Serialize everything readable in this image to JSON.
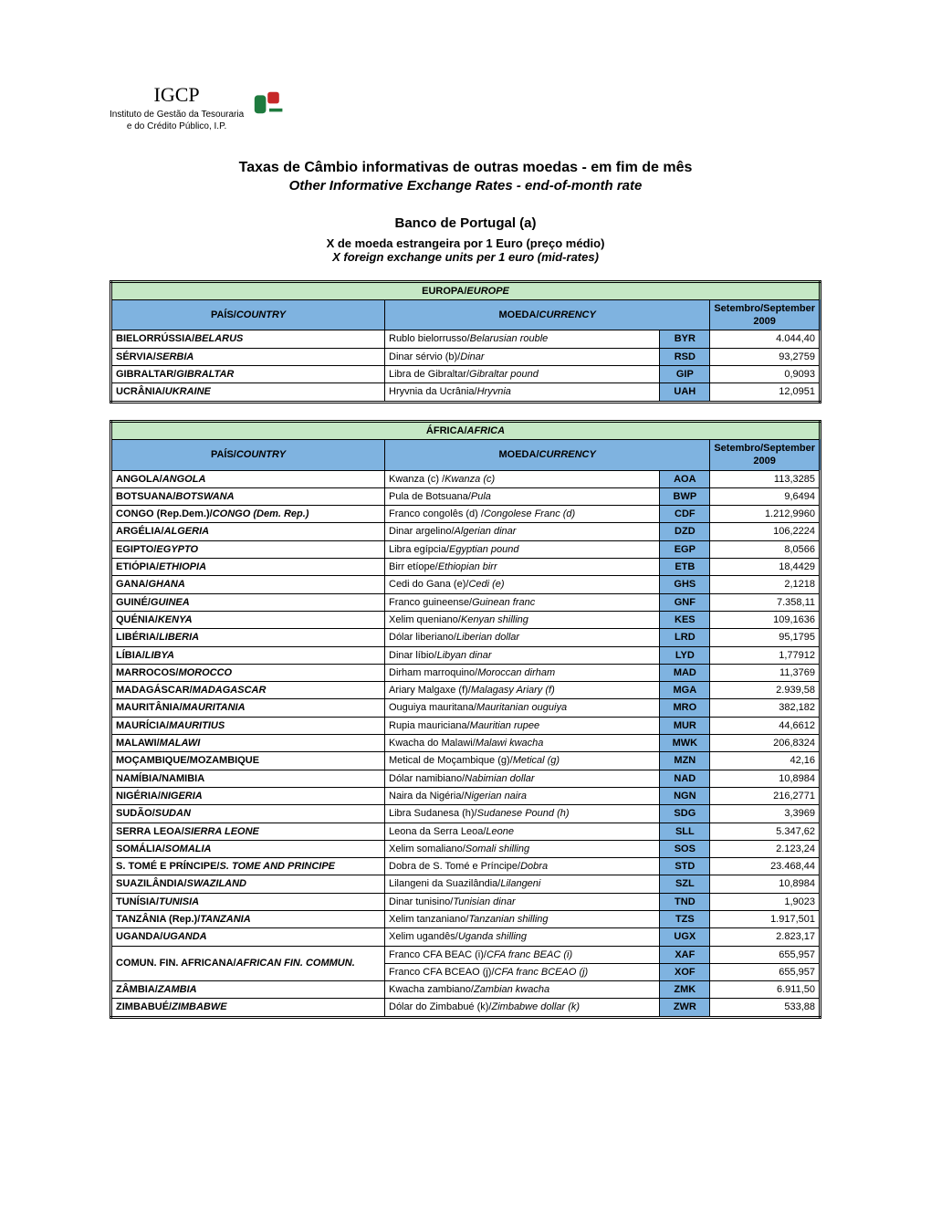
{
  "logo": {
    "short": "IGCP",
    "line1": "Instituto de Gestão da Tesouraria",
    "line2": "e do Crédito Público, I.P."
  },
  "titles": {
    "main_pt": "Taxas de Câmbio informativas de outras moedas - em fim de mês",
    "main_en": "Other Informative Exchange Rates - end-of-month rate",
    "source": "Banco de Portugal (a)",
    "unit_pt": "X de moeda estrangeira por 1 Euro (preço médio)",
    "unit_en": "X foreign exchange units per 1 euro (mid-rates)"
  },
  "headers": {
    "country_pt": "PAÍS/",
    "country_en": "COUNTRY",
    "currency_pt": "MOEDA/",
    "currency_en": "CURRENCY",
    "period": "Setembro/September 2009"
  },
  "colors": {
    "continent_bg": "#c5e8c5",
    "header_bg": "#7fb3e0",
    "code_bg": "#7fb3e0",
    "border": "#000000",
    "page_bg": "#ffffff"
  },
  "sections": [
    {
      "title_pt": "EUROPA/",
      "title_en": "EUROPE",
      "rows": [
        {
          "c_pt": "BIELORRÚSSIA/",
          "c_en": "BELARUS",
          "m_pt": "Rublo bielorrusso/",
          "m_en": "Belarusian rouble",
          "code": "BYR",
          "rate": "4.044,40"
        },
        {
          "c_pt": "SÉRVIA/",
          "c_en": "SERBIA",
          "m_pt": "Dinar sérvio (b)/",
          "m_en": "Dinar",
          "code": "RSD",
          "rate": "93,2759"
        },
        {
          "c_pt": "GIBRALTAR/",
          "c_en": "GIBRALTAR",
          "m_pt": "Libra de Gibraltar/",
          "m_en": "Gibraltar pound",
          "code": "GIP",
          "rate": "0,9093"
        },
        {
          "c_pt": "UCRÂNIA/",
          "c_en": "UKRAINE",
          "m_pt": "Hryvnia da Ucrânia/",
          "m_en": "Hryvnia",
          "code": "UAH",
          "rate": "12,0951"
        }
      ]
    },
    {
      "title_pt": "ÁFRICA/",
      "title_en": "AFRICA",
      "rows": [
        {
          "c_pt": "ANGOLA/",
          "c_en": "ANGOLA",
          "m_pt": "Kwanza (c) /",
          "m_en": "Kwanza (c)",
          "code": "AOA",
          "rate": "113,3285"
        },
        {
          "c_pt": "BOTSUANA/",
          "c_en": "BOTSWANA",
          "m_pt": "Pula de Botsuana/",
          "m_en": "Pula",
          "code": "BWP",
          "rate": "9,6494"
        },
        {
          "c_pt": "CONGO (Rep.Dem.)/",
          "c_en": "CONGO (Dem. Rep.)",
          "m_pt": "Franco congolês (d) /",
          "m_en": "Congolese Franc (d)",
          "code": "CDF",
          "rate": "1.212,9960"
        },
        {
          "c_pt": "ARGÉLIA/",
          "c_en": "ALGERIA",
          "m_pt": "Dinar argelino/",
          "m_en": "Algerian dinar",
          "code": "DZD",
          "rate": "106,2224"
        },
        {
          "c_pt": "EGIPTO/",
          "c_en": "EGYPTO",
          "m_pt": "Libra egípcia/",
          "m_en": "Egyptian pound",
          "code": "EGP",
          "rate": "8,0566"
        },
        {
          "c_pt": "ETIÓPIA/",
          "c_en": "ETHIOPIA",
          "m_pt": "Birr etíope/",
          "m_en": "Ethiopian birr",
          "code": "ETB",
          "rate": "18,4429"
        },
        {
          "c_pt": "GANA/",
          "c_en": "GHANA",
          "m_pt": "Cedi do Gana (e)/",
          "m_en": "Cedi (e)",
          "code": "GHS",
          "rate": "2,1218"
        },
        {
          "c_pt": "GUINÉ/",
          "c_en": "GUINEA",
          "m_pt": "Franco guineense/",
          "m_en": "Guinean franc",
          "code": "GNF",
          "rate": "7.358,11"
        },
        {
          "c_pt": "QUÉNIA/",
          "c_en": "KENYA",
          "m_pt": "Xelim queniano/",
          "m_en": "Kenyan shilling",
          "code": "KES",
          "rate": "109,1636"
        },
        {
          "c_pt": "LIBÉRIA/",
          "c_en": "LIBERIA",
          "m_pt": "Dólar liberiano/",
          "m_en": "Liberian dollar",
          "code": "LRD",
          "rate": "95,1795"
        },
        {
          "c_pt": "LÍBIA/",
          "c_en": "LIBYA",
          "m_pt": "Dinar líbio/",
          "m_en": "Libyan dinar",
          "code": "LYD",
          "rate": "1,77912"
        },
        {
          "c_pt": "MARROCOS/",
          "c_en": "MOROCCO",
          "m_pt": "Dirham marroquino/",
          "m_en": "Moroccan dirham",
          "code": "MAD",
          "rate": "11,3769"
        },
        {
          "c_pt": "MADAGÁSCAR/",
          "c_en": "MADAGASCAR",
          "m_pt": "Ariary Malgaxe (f)/",
          "m_en": "Malagasy Ariary (f)",
          "code": "MGA",
          "rate": "2.939,58"
        },
        {
          "c_pt": "MAURITÂNIA/",
          "c_en": "MAURITANIA",
          "m_pt": "Ouguiya mauritana/",
          "m_en": "Mauritanian ouguiya",
          "code": "MRO",
          "rate": "382,182"
        },
        {
          "c_pt": "MAURÍCIA/",
          "c_en": "MAURITIUS",
          "m_pt": "Rupia mauriciana/",
          "m_en": "Mauritian rupee",
          "code": "MUR",
          "rate": "44,6612"
        },
        {
          "c_pt": "MALAWI/",
          "c_en": "MALAWI",
          "m_pt": "Kwacha do Malawi/",
          "m_en": "Malawi kwacha",
          "code": "MWK",
          "rate": "206,8324"
        },
        {
          "c_pt": "MOÇAMBIQUE/MOZAMBIQUE",
          "c_en": "",
          "m_pt": "Metical de Moçambique (g)/",
          "m_en": "Metical (g)",
          "code": "MZN",
          "rate": "42,16"
        },
        {
          "c_pt": "NAMÍBIA/NAMIBIA",
          "c_en": "",
          "m_pt": "Dólar namibiano/",
          "m_en": "Nabimian dollar",
          "code": "NAD",
          "rate": "10,8984"
        },
        {
          "c_pt": "NIGÉRIA/",
          "c_en": "NIGERIA",
          "m_pt": "Naira da Nigéria/",
          "m_en": "Nigerian naira",
          "code": "NGN",
          "rate": "216,2771"
        },
        {
          "c_pt": "SUDÃO/",
          "c_en": "SUDAN",
          "m_pt": "Libra Sudanesa (h)/",
          "m_en": "Sudanese Pound (h)",
          "code": "SDG",
          "rate": "3,3969"
        },
        {
          "c_pt": "SERRA LEOA/",
          "c_en": "SIERRA LEONE",
          "m_pt": "Leona da Serra Leoa/",
          "m_en": "Leone",
          "code": "SLL",
          "rate": "5.347,62"
        },
        {
          "c_pt": "SOMÁLIA/",
          "c_en": "SOMALIA",
          "m_pt": "Xelim somaliano/",
          "m_en": "Somali shilling",
          "code": "SOS",
          "rate": "2.123,24"
        },
        {
          "c_pt": "S. TOMÉ E PRÍNCIPE/",
          "c_en": "S. TOME AND PRINCIPE",
          "m_pt": "Dobra de S. Tomé e Príncipe/",
          "m_en": "Dobra",
          "code": "STD",
          "rate": "23.468,44"
        },
        {
          "c_pt": "SUAZILÂNDIA/",
          "c_en": "SWAZILAND",
          "m_pt": "Lilangeni da Suazilândia/",
          "m_en": "Lilangeni",
          "code": "SZL",
          "rate": "10,8984"
        },
        {
          "c_pt": "TUNÍSIA/",
          "c_en": "TUNISIA",
          "m_pt": "Dinar tunisino/",
          "m_en": "Tunisian dinar",
          "code": "TND",
          "rate": "1,9023"
        },
        {
          "c_pt": "TANZÂNIA (Rep.)/",
          "c_en": "TANZANIA",
          "m_pt": "Xelim tanzaniano/",
          "m_en": "Tanzanian shilling",
          "code": "TZS",
          "rate": "1.917,501"
        },
        {
          "c_pt": "UGANDA/",
          "c_en": "UGANDA",
          "m_pt": "Xelim ugandês/",
          "m_en": "Uganda shilling",
          "code": "UGX",
          "rate": "2.823,17"
        },
        {
          "c_pt": "COMUN. FIN. AFRICANA/",
          "c_en": "AFRICAN FIN. COMMUN.",
          "rowspan": 2,
          "m_pt": "Franco CFA BEAC (i)/",
          "m_en": "CFA franc BEAC (i)",
          "code": "XAF",
          "rate": "655,957"
        },
        {
          "c_pt": null,
          "c_en": null,
          "m_pt": "Franco CFA BCEAO (j)/",
          "m_en": "CFA franc BCEAO (j)",
          "code": "XOF",
          "rate": "655,957"
        },
        {
          "c_pt": "ZÂMBIA/",
          "c_en": "ZAMBIA",
          "m_pt": "Kwacha zambiano/",
          "m_en": "Zambian kwacha",
          "code": "ZMK",
          "rate": "6.911,50"
        },
        {
          "c_pt": "ZIMBABUÉ/",
          "c_en": "ZIMBABWE",
          "m_pt": "Dólar do Zimbabué (k)/",
          "m_en": "Zimbabwe dollar (k)",
          "code": "ZWR",
          "rate": "533,88"
        }
      ]
    }
  ]
}
